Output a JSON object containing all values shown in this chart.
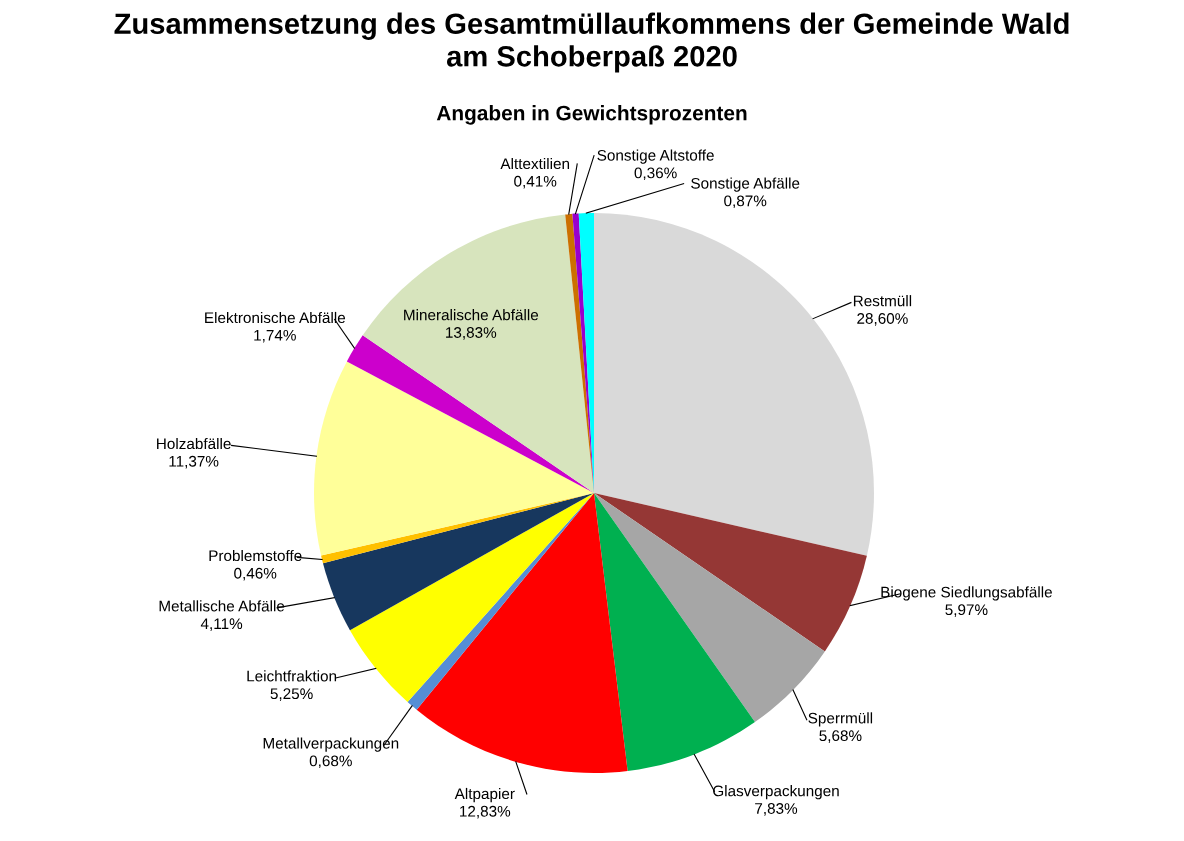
{
  "chart_data": {
    "type": "pie",
    "title": "Zusammensetzung des Gesamtmüllaufkommens der Gemeinde Wald\nam Schoberpaß 2020",
    "subtitle": "Angaben in Gewichtsprozenten",
    "categories": [
      "Restmüll",
      "Biogene Siedlungsabfälle",
      "Sperrmüll",
      "Glasverpackungen",
      "Altpapier",
      "Metallverpackungen",
      "Leichtfraktion",
      "Metallische Abfälle",
      "Problemstoffe",
      "Holzabfälle",
      "Elektronische Abfälle",
      "Mineralische Abfälle",
      "Alttextilien",
      "Sonstige Altstoffe",
      "Sonstige Abfälle"
    ],
    "values": [
      28.6,
      5.97,
      5.68,
      7.83,
      12.83,
      0.68,
      5.25,
      4.11,
      0.46,
      11.37,
      1.74,
      13.83,
      0.41,
      0.36,
      0.87
    ],
    "value_labels": [
      "28,60%",
      "5,97%",
      "5,68%",
      "7,83%",
      "12,83%",
      "0,68%",
      "5,25%",
      "4,11%",
      "0,46%",
      "11,37%",
      "1,74%",
      "13,83%",
      "0,41%",
      "0,36%",
      "0,87%"
    ],
    "colors": [
      "#d9d9d9",
      "#953735",
      "#a6a6a6",
      "#00b050",
      "#ff0000",
      "#558ed5",
      "#ffff00",
      "#17375e",
      "#ffc000",
      "#ffff99",
      "#cc00cc",
      "#d7e4bd",
      "#cc7000",
      "#9900cc",
      "#00ffff"
    ]
  }
}
